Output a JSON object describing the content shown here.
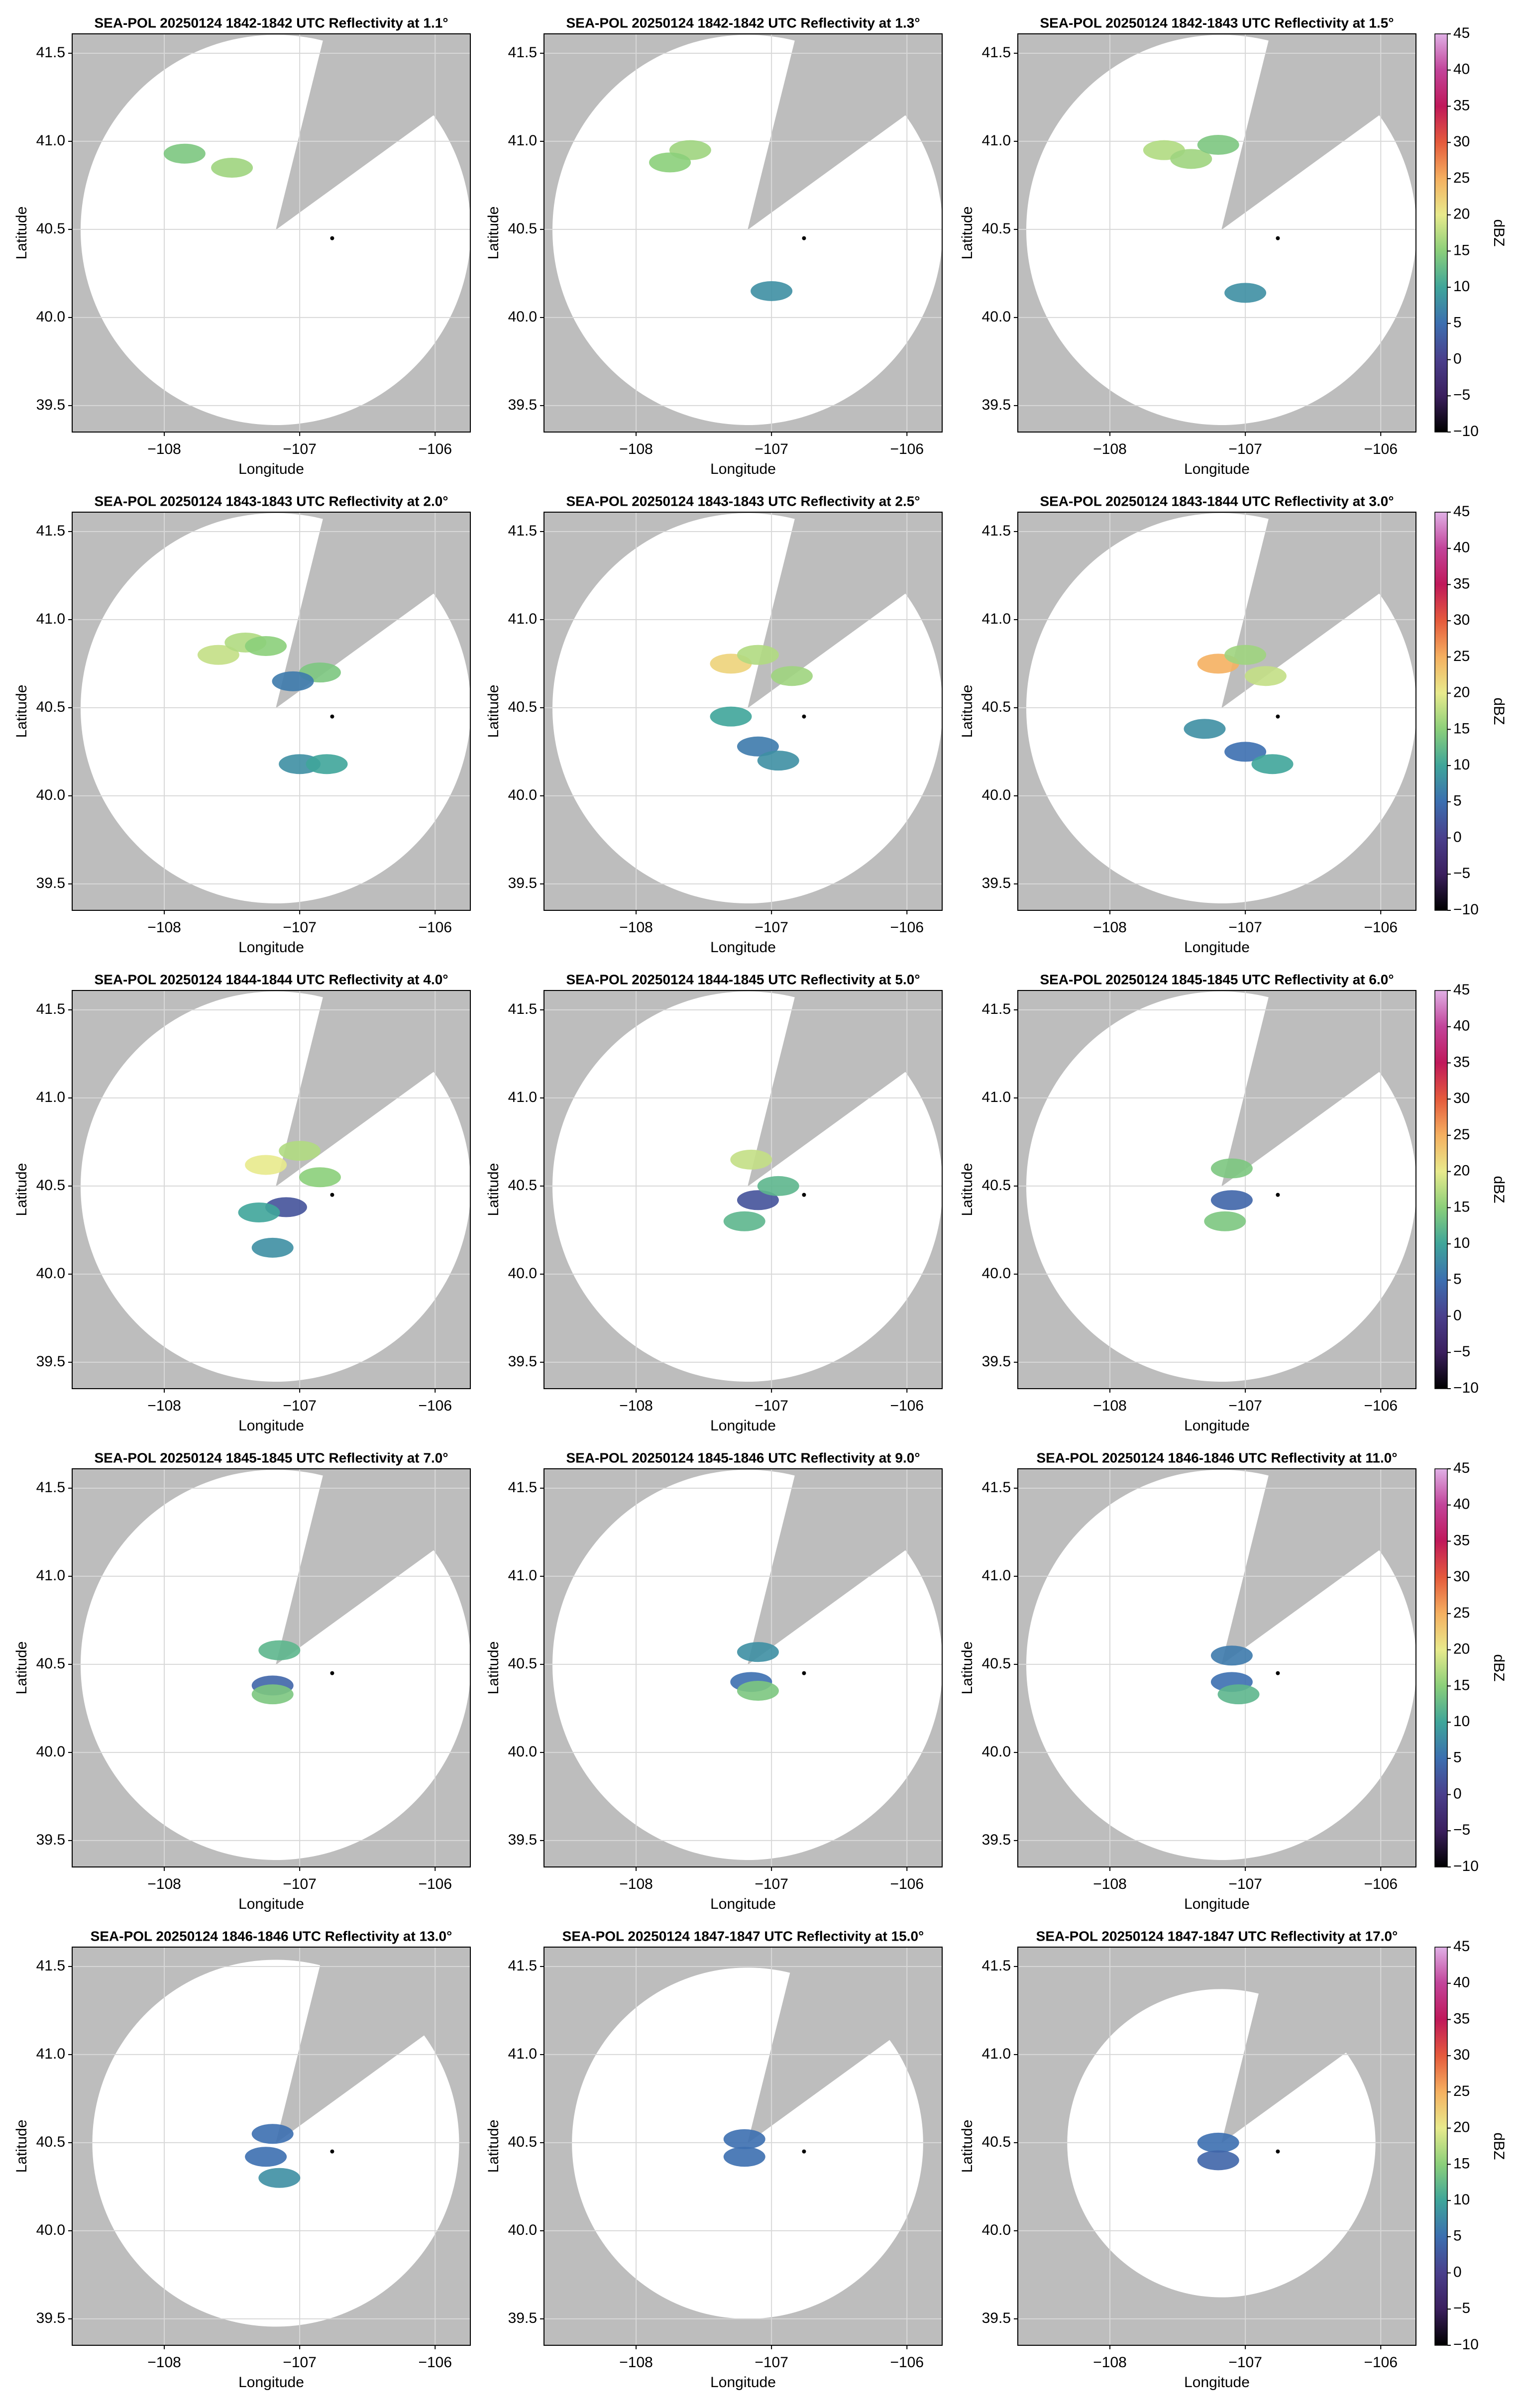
{
  "colormap": {
    "lim": [
      -10,
      45
    ],
    "colors": [
      "#000000",
      "#3b1f5e",
      "#4a3f8c",
      "#3c6fb0",
      "#3fa59a",
      "#8bcf7a",
      "#e8ea8c",
      "#f5b060",
      "#e55a3c",
      "#c0185a",
      "#c2449a",
      "#e0b0e6"
    ]
  },
  "chart_data": [
    {
      "type": "radar_ppi",
      "title": "SEA-POL 20250124 1842-1842 UTC Reflectivity at 1.1°",
      "xlabel": "Longitude",
      "ylabel": "Latitude",
      "xlim": [
        -108.68,
        -105.74
      ],
      "ylim": [
        39.35,
        41.61
      ],
      "xticks": [
        {
          "value": -108,
          "label": "−108"
        },
        {
          "value": -107,
          "label": "−107"
        },
        {
          "value": -106,
          "label": "−106"
        }
      ],
      "yticks": [
        39.5,
        {
          "value": 40,
          "label": "40.0"
        },
        40.5,
        {
          "value": 41,
          "label": "41.0"
        },
        41.5
      ],
      "grid": true,
      "site": {
        "x": -106.76,
        "y": 40.45,
        "color": "#000000"
      },
      "echoes": {
        "x": [
          -107.85,
          -107.5
        ],
        "y": [
          40.93,
          40.85
        ],
        "values": [
          14,
          16
        ]
      }
    },
    {
      "type": "radar_ppi",
      "title": "SEA-POL 20250124 1842-1842 UTC Reflectivity at 1.3°",
      "xlabel": "Longitude",
      "ylabel": "Latitude",
      "xlim": [
        -108.68,
        -105.74
      ],
      "ylim": [
        39.35,
        41.61
      ],
      "xticks": [
        {
          "value": -108,
          "label": "−108"
        },
        {
          "value": -107,
          "label": "−107"
        },
        {
          "value": -106,
          "label": "−106"
        }
      ],
      "yticks": [
        39.5,
        {
          "value": 40,
          "label": "40.0"
        },
        40.5,
        {
          "value": 41,
          "label": "41.0"
        },
        41.5
      ],
      "grid": true,
      "site": {
        "x": -106.76,
        "y": 40.45,
        "color": "#000000"
      },
      "echoes": {
        "x": [
          -107.6,
          -107.75,
          -107.0
        ],
        "y": [
          40.95,
          40.88,
          40.15
        ],
        "values": [
          16,
          15,
          8
        ]
      }
    },
    {
      "type": "radar_ppi",
      "title": "SEA-POL 20250124 1842-1843 UTC Reflectivity at 1.5°",
      "xlabel": "Longitude",
      "ylabel": "Latitude",
      "xlim": [
        -108.68,
        -105.74
      ],
      "ylim": [
        39.35,
        41.61
      ],
      "xticks": [
        {
          "value": -108,
          "label": "−108"
        },
        {
          "value": -107,
          "label": "−107"
        },
        {
          "value": -106,
          "label": "−106"
        }
      ],
      "yticks": [
        39.5,
        {
          "value": 40,
          "label": "40.0"
        },
        40.5,
        {
          "value": 41,
          "label": "41.0"
        },
        41.5
      ],
      "grid": true,
      "site": {
        "x": -106.76,
        "y": 40.45,
        "color": "#000000"
      },
      "echoes": {
        "x": [
          -107.6,
          -107.4,
          -107.2,
          -107.0
        ],
        "y": [
          40.95,
          40.9,
          40.98,
          40.14
        ],
        "values": [
          17,
          16,
          14,
          8
        ]
      },
      "colorbar": {
        "label": "dBZ",
        "ticks": [
          {
            "value": -10,
            "label": "−10"
          },
          {
            "value": -5,
            "label": "−5"
          },
          0,
          5,
          10,
          15,
          20,
          25,
          30,
          35,
          40,
          45
        ]
      }
    },
    {
      "type": "radar_ppi",
      "title": "SEA-POL 20250124 1843-1843 UTC Reflectivity at 2.0°",
      "xlabel": "Longitude",
      "ylabel": "Latitude",
      "xlim": [
        -108.68,
        -105.74
      ],
      "ylim": [
        39.35,
        41.61
      ],
      "xticks": [
        {
          "value": -108,
          "label": "−108"
        },
        {
          "value": -107,
          "label": "−107"
        },
        {
          "value": -106,
          "label": "−106"
        }
      ],
      "yticks": [
        39.5,
        {
          "value": 40,
          "label": "40.0"
        },
        40.5,
        {
          "value": 41,
          "label": "41.0"
        },
        41.5
      ],
      "grid": true,
      "site": {
        "x": -106.76,
        "y": 40.45,
        "color": "#000000"
      },
      "echoes": {
        "x": [
          -107.6,
          -107.4,
          -107.25,
          -106.85,
          -107.05,
          -107.0,
          -106.8
        ],
        "y": [
          40.8,
          40.87,
          40.85,
          40.7,
          40.65,
          40.18,
          40.18
        ],
        "values": [
          18,
          17,
          15,
          14,
          6,
          8,
          10
        ]
      }
    },
    {
      "type": "radar_ppi",
      "title": "SEA-POL 20250124 1843-1843 UTC Reflectivity at 2.5°",
      "xlabel": "Longitude",
      "ylabel": "Latitude",
      "xlim": [
        -108.68,
        -105.74
      ],
      "ylim": [
        39.35,
        41.61
      ],
      "xticks": [
        {
          "value": -108,
          "label": "−108"
        },
        {
          "value": -107,
          "label": "−107"
        },
        {
          "value": -106,
          "label": "−106"
        }
      ],
      "yticks": [
        39.5,
        {
          "value": 40,
          "label": "40.0"
        },
        40.5,
        {
          "value": 41,
          "label": "41.0"
        },
        41.5
      ],
      "grid": true,
      "site": {
        "x": -106.76,
        "y": 40.45,
        "color": "#000000"
      },
      "echoes": {
        "x": [
          -107.3,
          -107.1,
          -106.85,
          -107.1,
          -106.95,
          -107.3
        ],
        "y": [
          40.75,
          40.8,
          40.68,
          40.28,
          40.2,
          40.45
        ],
        "values": [
          22,
          17,
          16,
          6,
          8,
          10
        ]
      }
    },
    {
      "type": "radar_ppi",
      "title": "SEA-POL 20250124 1843-1844 UTC Reflectivity at 3.0°",
      "xlabel": "Longitude",
      "ylabel": "Latitude",
      "xlim": [
        -108.68,
        -105.74
      ],
      "ylim": [
        39.35,
        41.61
      ],
      "xticks": [
        {
          "value": -108,
          "label": "−108"
        },
        {
          "value": -107,
          "label": "−107"
        },
        {
          "value": -106,
          "label": "−106"
        }
      ],
      "yticks": [
        39.5,
        {
          "value": 40,
          "label": "40.0"
        },
        40.5,
        {
          "value": 41,
          "label": "41.0"
        },
        41.5
      ],
      "grid": true,
      "site": {
        "x": -106.76,
        "y": 40.45,
        "color": "#000000"
      },
      "echoes": {
        "x": [
          -107.2,
          -107.0,
          -106.85,
          -107.3,
          -107.0,
          -106.8
        ],
        "y": [
          40.75,
          40.8,
          40.68,
          40.38,
          40.25,
          40.18
        ],
        "values": [
          25,
          16,
          18,
          8,
          5,
          10
        ]
      },
      "colorbar": {
        "label": "dBZ",
        "ticks": [
          {
            "value": -10,
            "label": "−10"
          },
          {
            "value": -5,
            "label": "−5"
          },
          0,
          5,
          10,
          15,
          20,
          25,
          30,
          35,
          40,
          45
        ]
      }
    },
    {
      "type": "radar_ppi",
      "title": "SEA-POL 20250124 1844-1844 UTC Reflectivity at 4.0°",
      "xlabel": "Longitude",
      "ylabel": "Latitude",
      "xlim": [
        -108.68,
        -105.74
      ],
      "ylim": [
        39.35,
        41.61
      ],
      "xticks": [
        {
          "value": -108,
          "label": "−108"
        },
        {
          "value": -107,
          "label": "−107"
        },
        {
          "value": -106,
          "label": "−106"
        }
      ],
      "yticks": [
        39.5,
        {
          "value": 40,
          "label": "40.0"
        },
        40.5,
        {
          "value": 41,
          "label": "41.0"
        },
        41.5
      ],
      "grid": true,
      "site": {
        "x": -106.76,
        "y": 40.45,
        "color": "#000000"
      },
      "echoes": {
        "x": [
          -107.25,
          -107.0,
          -106.85,
          -107.1,
          -107.3,
          -107.2
        ],
        "y": [
          40.62,
          40.7,
          40.55,
          40.38,
          40.35,
          40.15
        ],
        "values": [
          20,
          17,
          15,
          2,
          10,
          8
        ]
      }
    },
    {
      "type": "radar_ppi",
      "title": "SEA-POL 20250124 1844-1845 UTC Reflectivity at 5.0°",
      "xlabel": "Longitude",
      "ylabel": "Latitude",
      "xlim": [
        -108.68,
        -105.74
      ],
      "ylim": [
        39.35,
        41.61
      ],
      "xticks": [
        {
          "value": -108,
          "label": "−108"
        },
        {
          "value": -107,
          "label": "−107"
        },
        {
          "value": -106,
          "label": "−106"
        }
      ],
      "yticks": [
        39.5,
        {
          "value": 40,
          "label": "40.0"
        },
        40.5,
        {
          "value": 41,
          "label": "41.0"
        },
        41.5
      ],
      "grid": true,
      "site": {
        "x": -106.76,
        "y": 40.45,
        "color": "#000000"
      },
      "echoes": {
        "x": [
          -107.15,
          -107.1,
          -107.2,
          -106.95
        ],
        "y": [
          40.65,
          40.42,
          40.3,
          40.5
        ],
        "values": [
          18,
          2,
          12,
          12
        ]
      }
    },
    {
      "type": "radar_ppi",
      "title": "SEA-POL 20250124 1845-1845 UTC Reflectivity at 6.0°",
      "xlabel": "Longitude",
      "ylabel": "Latitude",
      "xlim": [
        -108.68,
        -105.74
      ],
      "ylim": [
        39.35,
        41.61
      ],
      "xticks": [
        {
          "value": -108,
          "label": "−108"
        },
        {
          "value": -107,
          "label": "−107"
        },
        {
          "value": -106,
          "label": "−106"
        }
      ],
      "yticks": [
        39.5,
        {
          "value": 40,
          "label": "40.0"
        },
        40.5,
        {
          "value": 41,
          "label": "41.0"
        },
        41.5
      ],
      "grid": true,
      "site": {
        "x": -106.76,
        "y": 40.45,
        "color": "#000000"
      },
      "echoes": {
        "x": [
          -107.1,
          -107.1,
          -107.15
        ],
        "y": [
          40.6,
          40.42,
          40.3
        ],
        "values": [
          14,
          4,
          14
        ]
      },
      "colorbar": {
        "label": "dBZ",
        "ticks": [
          {
            "value": -10,
            "label": "−10"
          },
          {
            "value": -5,
            "label": "−5"
          },
          0,
          5,
          10,
          15,
          20,
          25,
          30,
          35,
          40,
          45
        ]
      }
    },
    {
      "type": "radar_ppi",
      "title": "SEA-POL 20250124 1845-1845 UTC Reflectivity at 7.0°",
      "xlabel": "Longitude",
      "ylabel": "Latitude",
      "xlim": [
        -108.68,
        -105.74
      ],
      "ylim": [
        39.35,
        41.61
      ],
      "xticks": [
        {
          "value": -108,
          "label": "−108"
        },
        {
          "value": -107,
          "label": "−107"
        },
        {
          "value": -106,
          "label": "−106"
        }
      ],
      "yticks": [
        39.5,
        {
          "value": 40,
          "label": "40.0"
        },
        40.5,
        {
          "value": 41,
          "label": "41.0"
        },
        41.5
      ],
      "grid": true,
      "site": {
        "x": -106.76,
        "y": 40.45,
        "color": "#000000"
      },
      "echoes": {
        "x": [
          -107.15,
          -107.2,
          -107.2
        ],
        "y": [
          40.58,
          40.38,
          40.33
        ],
        "values": [
          12,
          4,
          14
        ]
      }
    },
    {
      "type": "radar_ppi",
      "title": "SEA-POL 20250124 1845-1846 UTC Reflectivity at 9.0°",
      "xlabel": "Longitude",
      "ylabel": "Latitude",
      "xlim": [
        -108.68,
        -105.74
      ],
      "ylim": [
        39.35,
        41.61
      ],
      "xticks": [
        {
          "value": -108,
          "label": "−108"
        },
        {
          "value": -107,
          "label": "−107"
        },
        {
          "value": -106,
          "label": "−106"
        }
      ],
      "yticks": [
        39.5,
        {
          "value": 40,
          "label": "40.0"
        },
        40.5,
        {
          "value": 41,
          "label": "41.0"
        },
        41.5
      ],
      "grid": true,
      "site": {
        "x": -106.76,
        "y": 40.45,
        "color": "#000000"
      },
      "echoes": {
        "x": [
          -107.1,
          -107.15,
          -107.1
        ],
        "y": [
          40.57,
          40.4,
          40.35
        ],
        "values": [
          8,
          5,
          14
        ]
      }
    },
    {
      "type": "radar_ppi",
      "title": "SEA-POL 20250124 1846-1846 UTC Reflectivity at 11.0°",
      "xlabel": "Longitude",
      "ylabel": "Latitude",
      "xlim": [
        -108.68,
        -105.74
      ],
      "ylim": [
        39.35,
        41.61
      ],
      "xticks": [
        {
          "value": -108,
          "label": "−108"
        },
        {
          "value": -107,
          "label": "−107"
        },
        {
          "value": -106,
          "label": "−106"
        }
      ],
      "yticks": [
        39.5,
        {
          "value": 40,
          "label": "40.0"
        },
        40.5,
        {
          "value": 41,
          "label": "41.0"
        },
        41.5
      ],
      "grid": true,
      "site": {
        "x": -106.76,
        "y": 40.45,
        "color": "#000000"
      },
      "echoes": {
        "x": [
          -107.1,
          -107.1,
          -107.05
        ],
        "y": [
          40.55,
          40.4,
          40.33
        ],
        "values": [
          6,
          5,
          12
        ]
      },
      "colorbar": {
        "label": "dBZ",
        "ticks": [
          {
            "value": -10,
            "label": "−10"
          },
          {
            "value": -5,
            "label": "−5"
          },
          0,
          5,
          10,
          15,
          20,
          25,
          30,
          35,
          40,
          45
        ]
      }
    },
    {
      "type": "radar_ppi",
      "title": "SEA-POL 20250124 1846-1846 UTC Reflectivity at 13.0°",
      "xlabel": "Longitude",
      "ylabel": "Latitude",
      "xlim": [
        -108.68,
        -105.74
      ],
      "ylim": [
        39.35,
        41.61
      ],
      "xticks": [
        {
          "value": -108,
          "label": "−108"
        },
        {
          "value": -107,
          "label": "−107"
        },
        {
          "value": -106,
          "label": "−106"
        }
      ],
      "yticks": [
        39.5,
        {
          "value": 40,
          "label": "40.0"
        },
        40.5,
        {
          "value": 41,
          "label": "41.0"
        },
        41.5
      ],
      "grid": true,
      "site": {
        "x": -106.76,
        "y": 40.45,
        "color": "#000000"
      },
      "echoes": {
        "x": [
          -107.2,
          -107.25,
          -107.15
        ],
        "y": [
          40.55,
          40.42,
          40.3
        ],
        "values": [
          5,
          5,
          8
        ]
      }
    },
    {
      "type": "radar_ppi",
      "title": "SEA-POL 20250124 1847-1847 UTC Reflectivity at 15.0°",
      "xlabel": "Longitude",
      "ylabel": "Latitude",
      "xlim": [
        -108.68,
        -105.74
      ],
      "ylim": [
        39.35,
        41.61
      ],
      "xticks": [
        {
          "value": -108,
          "label": "−108"
        },
        {
          "value": -107,
          "label": "−107"
        },
        {
          "value": -106,
          "label": "−106"
        }
      ],
      "yticks": [
        39.5,
        {
          "value": 40,
          "label": "40.0"
        },
        40.5,
        {
          "value": 41,
          "label": "41.0"
        },
        41.5
      ],
      "grid": true,
      "site": {
        "x": -106.76,
        "y": 40.45,
        "color": "#000000"
      },
      "echoes": {
        "x": [
          -107.2,
          -107.2
        ],
        "y": [
          40.52,
          40.42
        ],
        "values": [
          5,
          5
        ]
      }
    },
    {
      "type": "radar_ppi",
      "title": "SEA-POL 20250124 1847-1847 UTC Reflectivity at 17.0°",
      "xlabel": "Longitude",
      "ylabel": "Latitude",
      "xlim": [
        -108.68,
        -105.74
      ],
      "ylim": [
        39.35,
        41.61
      ],
      "xticks": [
        {
          "value": -108,
          "label": "−108"
        },
        {
          "value": -107,
          "label": "−107"
        },
        {
          "value": -106,
          "label": "−106"
        }
      ],
      "yticks": [
        39.5,
        {
          "value": 40,
          "label": "40.0"
        },
        40.5,
        {
          "value": 41,
          "label": "41.0"
        },
        41.5
      ],
      "grid": true,
      "site": {
        "x": -106.76,
        "y": 40.45,
        "color": "#000000"
      },
      "echoes": {
        "x": [
          -107.2,
          -107.2
        ],
        "y": [
          40.5,
          40.4
        ],
        "values": [
          5,
          4
        ]
      },
      "colorbar": {
        "label": "dBZ",
        "ticks": [
          {
            "value": -10,
            "label": "−10"
          },
          {
            "value": -5,
            "label": "−5"
          },
          0,
          5,
          10,
          15,
          20,
          25,
          30,
          35,
          40,
          45
        ]
      }
    }
  ]
}
